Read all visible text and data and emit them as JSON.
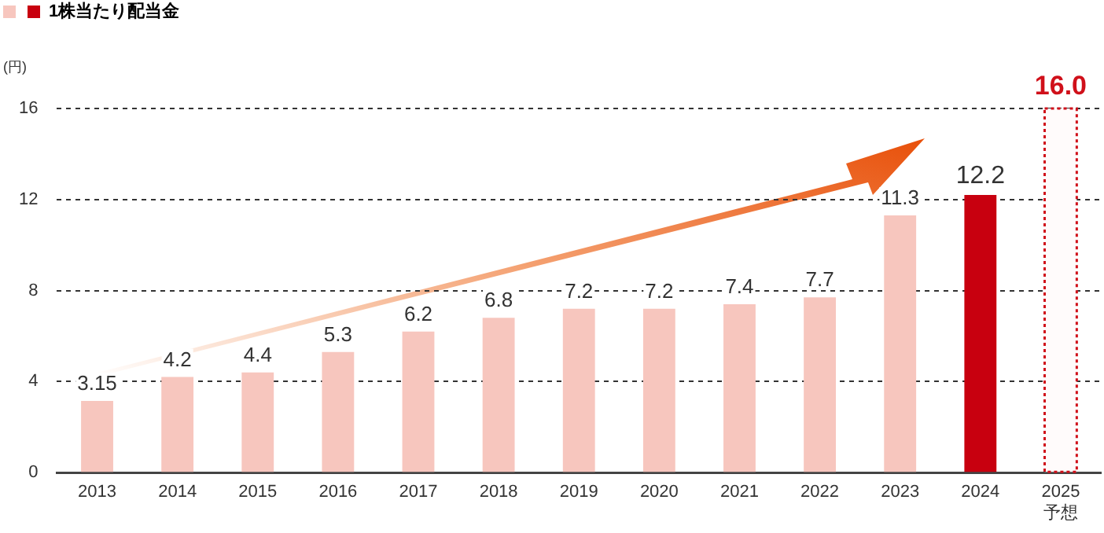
{
  "chart_data": {
    "type": "bar",
    "ylabel": "(円)",
    "categories": [
      "2013",
      "2014",
      "2015",
      "2016",
      "2017",
      "2018",
      "2019",
      "2020",
      "2021",
      "2022",
      "2023",
      "2024",
      "2025\n予想"
    ],
    "series": [
      {
        "name": "1株当たり配当金",
        "values": [
          3.15,
          4.2,
          4.4,
          5.3,
          6.2,
          6.8,
          7.2,
          7.2,
          7.4,
          7.7,
          11.3,
          12.2,
          null
        ],
        "colors": [
          "#f7c6be",
          "#f7c6be",
          "#f7c6be",
          "#f7c6be",
          "#f7c6be",
          "#f7c6be",
          "#f7c6be",
          "#f7c6be",
          "#f7c6be",
          "#f7c6be",
          "#f7c6be",
          "#c8000f",
          null
        ],
        "value_labels": [
          "3.15",
          "4.2",
          "4.4",
          "5.3",
          "6.2",
          "6.8",
          "7.2",
          "7.2",
          "7.4",
          "7.7",
          "11.3",
          "12.2",
          null
        ]
      },
      {
        "values": [
          null,
          null,
          null,
          null,
          null,
          null,
          null,
          null,
          null,
          null,
          null,
          null,
          16.0
        ],
        "color": "#d0101a",
        "line_style": "dotted",
        "value_labels": [
          null,
          null,
          null,
          null,
          null,
          null,
          null,
          null,
          null,
          null,
          null,
          null,
          "16.0"
        ]
      }
    ],
    "ylim": [
      0,
      16
    ],
    "yticks": [
      0,
      4,
      8,
      12,
      16
    ],
    "grid": "y",
    "legend": "top left"
  }
}
